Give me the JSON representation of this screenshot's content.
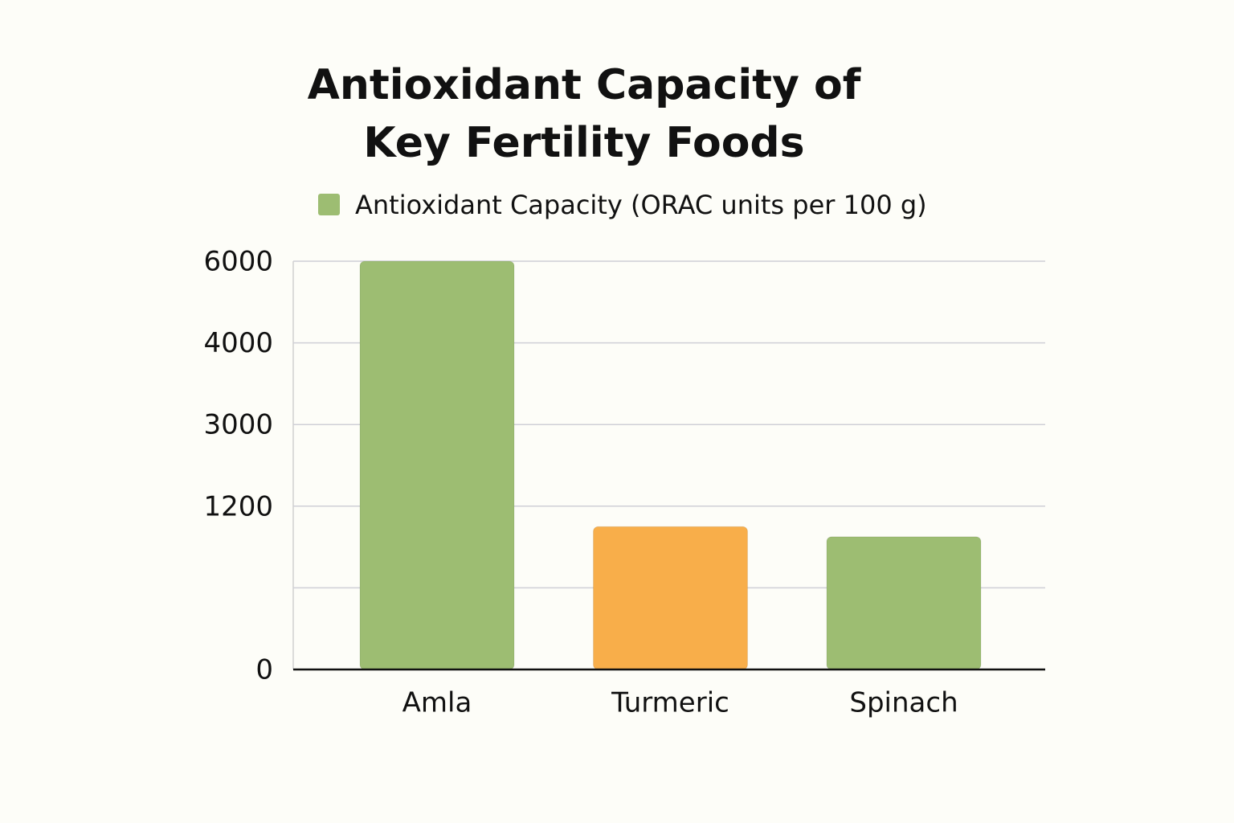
{
  "chart_data": {
    "type": "bar",
    "title": "Antioxidant Capacity of Key Fertility Foods",
    "categories": [
      "Amla",
      "Turmeric",
      "Spinach"
    ],
    "series": [
      {
        "name": "Antioxidant Capacity (ORAC units per 100 g)",
        "color": "#9dbd72",
        "values": [
          6000,
          1050,
          975
        ]
      }
    ],
    "bar_colors": [
      "#9dbd72",
      "#f8ae4a",
      "#9dbd72"
    ],
    "yticks": [
      0,
      null,
      1200,
      3000,
      4000,
      6000
    ],
    "grid": true,
    "legend": "top"
  }
}
